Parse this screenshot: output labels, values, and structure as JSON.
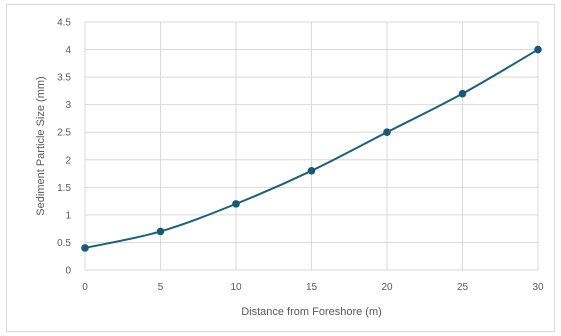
{
  "chart_data": {
    "type": "line",
    "title": "",
    "xlabel": "Distance from Foreshore (m)",
    "ylabel": "Sediment Particle Size (mm)",
    "x": [
      0,
      5,
      10,
      15,
      20,
      25,
      30
    ],
    "series": [
      {
        "values": [
          0.4,
          0.7,
          1.2,
          1.8,
          2.5,
          3.2,
          4.0
        ]
      }
    ],
    "xlim": [
      0,
      30
    ],
    "ylim": [
      0,
      4.5
    ],
    "x_ticks": [
      "0",
      "5",
      "10",
      "15",
      "20",
      "25",
      "30"
    ],
    "y_ticks": [
      "0",
      "0.5",
      "1",
      "1.5",
      "2",
      "2.5",
      "3",
      "3.5",
      "4",
      "4.5"
    ],
    "grid": true,
    "smoothed": true,
    "legend": "none",
    "colors": {
      "line": "#1f5f7a",
      "marker": "#1a5874",
      "grid": "#d9d9d9",
      "text": "#595959"
    }
  }
}
